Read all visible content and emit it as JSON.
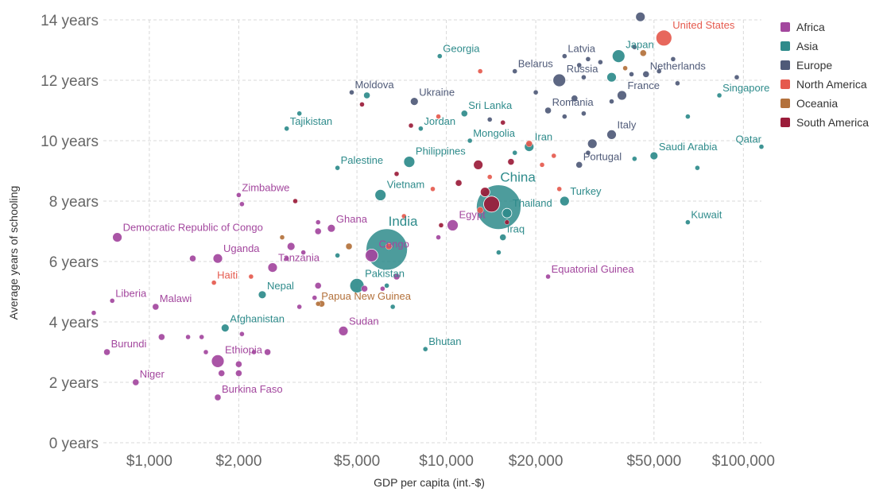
{
  "chart_data": {
    "type": "scatter",
    "xlabel": "GDP per capita (int.-$)",
    "ylabel": "Average years of schooling",
    "x_scale": "log",
    "xlim": [
      700,
      115000
    ],
    "ylim": [
      0,
      14
    ],
    "grid": true,
    "legend_placement": "right",
    "x_ticks": [
      {
        "value": 1000,
        "label": "$1,000"
      },
      {
        "value": 2000,
        "label": "$2,000"
      },
      {
        "value": 5000,
        "label": "$5,000"
      },
      {
        "value": 10000,
        "label": "$10,000"
      },
      {
        "value": 20000,
        "label": "$20,000"
      },
      {
        "value": 50000,
        "label": "$50,000"
      },
      {
        "value": 100000,
        "label": "$100,000"
      }
    ],
    "y_ticks": [
      {
        "value": 0,
        "label": "0 years"
      },
      {
        "value": 2,
        "label": "2 years"
      },
      {
        "value": 4,
        "label": "4 years"
      },
      {
        "value": 6,
        "label": "6 years"
      },
      {
        "value": 8,
        "label": "8 years"
      },
      {
        "value": 10,
        "label": "10 years"
      },
      {
        "value": 12,
        "label": "12 years"
      },
      {
        "value": 14,
        "label": "14 years"
      }
    ],
    "legend": [
      {
        "name": "Africa",
        "color": "#a3479e"
      },
      {
        "name": "Asia",
        "color": "#2e8b8b"
      },
      {
        "name": "Europe",
        "color": "#4f5a78"
      },
      {
        "name": "North America",
        "color": "#e55a4e"
      },
      {
        "name": "Oceania",
        "color": "#b3713b"
      },
      {
        "name": "South America",
        "color": "#9b1c3a"
      }
    ],
    "points": [
      {
        "label": "United States",
        "region": "North America",
        "x": 54000,
        "y": 13.4,
        "size": 10
      },
      {
        "label": "Japan",
        "region": "Asia",
        "x": 38000,
        "y": 12.8,
        "size": 8
      },
      {
        "label": "Latvia",
        "region": "Europe",
        "x": 25000,
        "y": 12.8,
        "size": 3
      },
      {
        "label": "Georgia",
        "region": "Asia",
        "x": 9500,
        "y": 12.8,
        "size": 3
      },
      {
        "label": "Belarus",
        "region": "Europe",
        "x": 17000,
        "y": 12.3,
        "size": 3
      },
      {
        "label": "Russia",
        "region": "Europe",
        "x": 24000,
        "y": 12.0,
        "size": 8
      },
      {
        "label": "Netherlands",
        "region": "Europe",
        "x": 47000,
        "y": 12.2,
        "size": 4
      },
      {
        "label": "Singapore",
        "region": "Asia",
        "x": 83000,
        "y": 11.5,
        "size": 3
      },
      {
        "label": "France",
        "region": "Europe",
        "x": 39000,
        "y": 11.5,
        "size": 6
      },
      {
        "label": "Moldova",
        "region": "Europe",
        "x": 4800,
        "y": 11.6,
        "size": 3
      },
      {
        "label": "Ukraine",
        "region": "Europe",
        "x": 7800,
        "y": 11.3,
        "size": 5
      },
      {
        "label": "Romania",
        "region": "Europe",
        "x": 22000,
        "y": 11.0,
        "size": 4
      },
      {
        "label": "Sri Lanka",
        "region": "Asia",
        "x": 11500,
        "y": 10.9,
        "size": 4
      },
      {
        "label": "Tajikistan",
        "region": "Asia",
        "x": 2900,
        "y": 10.4,
        "size": 3
      },
      {
        "label": "Jordan",
        "region": "Asia",
        "x": 8200,
        "y": 10.4,
        "size": 3
      },
      {
        "label": "Mongolia",
        "region": "Asia",
        "x": 12000,
        "y": 10.0,
        "size": 3
      },
      {
        "label": "Iran",
        "region": "Asia",
        "x": 19000,
        "y": 9.8,
        "size": 6
      },
      {
        "label": "Italy",
        "region": "Europe",
        "x": 36000,
        "y": 10.2,
        "size": 6
      },
      {
        "label": "Qatar",
        "region": "Asia",
        "x": 115000,
        "y": 9.8,
        "size": 3
      },
      {
        "label": "Saudi Arabia",
        "region": "Asia",
        "x": 50000,
        "y": 9.5,
        "size": 5
      },
      {
        "label": "Portugal",
        "region": "Europe",
        "x": 28000,
        "y": 9.2,
        "size": 4
      },
      {
        "label": "Philippines",
        "region": "Asia",
        "x": 7500,
        "y": 9.3,
        "size": 7
      },
      {
        "label": "Palestine",
        "region": "Asia",
        "x": 4300,
        "y": 9.1,
        "size": 3
      },
      {
        "label": "Zimbabwe",
        "region": "Africa",
        "x": 2000,
        "y": 8.2,
        "size": 3
      },
      {
        "label": "Vietnam",
        "region": "Asia",
        "x": 6000,
        "y": 8.2,
        "size": 7
      },
      {
        "label": "China",
        "region": "Asia",
        "x": 15000,
        "y": 7.8,
        "size": 28,
        "big": true
      },
      {
        "label": "Turkey",
        "region": "Asia",
        "x": 25000,
        "y": 8.0,
        "size": 6
      },
      {
        "label": "Thailand",
        "region": "Asia",
        "x": 16000,
        "y": 7.6,
        "size": 6
      },
      {
        "label": "Iraq",
        "region": "Asia",
        "x": 15500,
        "y": 6.8,
        "size": 4
      },
      {
        "label": "Egypt",
        "region": "Africa",
        "x": 10500,
        "y": 7.2,
        "size": 7
      },
      {
        "label": "Kuwait",
        "region": "Asia",
        "x": 65000,
        "y": 7.3,
        "size": 3
      },
      {
        "label": "India",
        "region": "Asia",
        "x": 6300,
        "y": 6.4,
        "size": 26,
        "big": true
      },
      {
        "label": "Democratic Republic of Congo",
        "region": "Africa",
        "x": 780,
        "y": 6.8,
        "size": 6
      },
      {
        "label": "Ghana",
        "region": "Africa",
        "x": 4100,
        "y": 7.1,
        "size": 5
      },
      {
        "label": "Congo",
        "region": "Africa",
        "x": 5600,
        "y": 6.2,
        "size": 8
      },
      {
        "label": "Uganda",
        "region": "Africa",
        "x": 1700,
        "y": 6.1,
        "size": 6
      },
      {
        "label": "Tanzania",
        "region": "Africa",
        "x": 2600,
        "y": 5.8,
        "size": 6
      },
      {
        "label": "Haiti",
        "region": "North America",
        "x": 1650,
        "y": 5.3,
        "size": 3
      },
      {
        "label": "Pakistan",
        "region": "Asia",
        "x": 5000,
        "y": 5.2,
        "size": 9
      },
      {
        "label": "Equatorial Guinea",
        "region": "Africa",
        "x": 22000,
        "y": 5.5,
        "size": 3
      },
      {
        "label": "Liberia",
        "region": "Africa",
        "x": 750,
        "y": 4.7,
        "size": 3
      },
      {
        "label": "Malawi",
        "region": "Africa",
        "x": 1050,
        "y": 4.5,
        "size": 4
      },
      {
        "label": "Nepal",
        "region": "Asia",
        "x": 2400,
        "y": 4.9,
        "size": 5
      },
      {
        "label": "Papua New Guinea",
        "region": "Oceania",
        "x": 3700,
        "y": 4.6,
        "size": 3
      },
      {
        "label": "Afghanistan",
        "region": "Asia",
        "x": 1800,
        "y": 3.8,
        "size": 5
      },
      {
        "label": "Sudan",
        "region": "Africa",
        "x": 4500,
        "y": 3.7,
        "size": 6
      },
      {
        "label": "Bhutan",
        "region": "Asia",
        "x": 8500,
        "y": 3.1,
        "size": 3
      },
      {
        "label": "Burundi",
        "region": "Africa",
        "x": 720,
        "y": 3.0,
        "size": 4
      },
      {
        "label": "Ethiopia",
        "region": "Africa",
        "x": 1700,
        "y": 2.7,
        "size": 8
      },
      {
        "label": "Niger",
        "region": "Africa",
        "x": 900,
        "y": 2.0,
        "size": 4
      },
      {
        "label": "Burkina Faso",
        "region": "Africa",
        "x": 1700,
        "y": 1.5,
        "size": 4
      },
      {
        "region": "Europe",
        "x": 45000,
        "y": 14.1,
        "size": 6
      },
      {
        "region": "Europe",
        "x": 43000,
        "y": 13.1,
        "size": 3
      },
      {
        "region": "Europe",
        "x": 30000,
        "y": 12.7,
        "size": 3
      },
      {
        "region": "Europe",
        "x": 33000,
        "y": 12.6,
        "size": 3
      },
      {
        "region": "Europe",
        "x": 28000,
        "y": 12.5,
        "size": 3
      },
      {
        "region": "Oceania",
        "x": 46000,
        "y": 12.9,
        "size": 4
      },
      {
        "region": "Oceania",
        "x": 40000,
        "y": 12.4,
        "size": 3
      },
      {
        "region": "Europe",
        "x": 42000,
        "y": 12.2,
        "size": 3
      },
      {
        "region": "Asia",
        "x": 36000,
        "y": 12.1,
        "size": 6
      },
      {
        "region": "Europe",
        "x": 29000,
        "y": 12.1,
        "size": 3
      },
      {
        "region": "Europe",
        "x": 52000,
        "y": 12.3,
        "size": 3
      },
      {
        "region": "Europe",
        "x": 60000,
        "y": 11.9,
        "size": 3
      },
      {
        "region": "Europe",
        "x": 95000,
        "y": 12.1,
        "size": 3
      },
      {
        "region": "Europe",
        "x": 58000,
        "y": 12.7,
        "size": 3
      },
      {
        "region": "Europe",
        "x": 20000,
        "y": 11.6,
        "size": 3
      },
      {
        "region": "Europe",
        "x": 27000,
        "y": 11.4,
        "size": 4
      },
      {
        "region": "Europe",
        "x": 36000,
        "y": 11.3,
        "size": 3
      },
      {
        "region": "Europe",
        "x": 25000,
        "y": 10.8,
        "size": 3
      },
      {
        "region": "Europe",
        "x": 29000,
        "y": 10.9,
        "size": 3
      },
      {
        "region": "North America",
        "x": 13000,
        "y": 12.3,
        "size": 3
      },
      {
        "region": "South America",
        "x": 5200,
        "y": 11.2,
        "size": 3
      },
      {
        "region": "Asia",
        "x": 5400,
        "y": 11.5,
        "size": 4
      },
      {
        "region": "Asia",
        "x": 3200,
        "y": 10.9,
        "size": 3
      },
      {
        "region": "North America",
        "x": 9400,
        "y": 10.8,
        "size": 3
      },
      {
        "region": "South America",
        "x": 7600,
        "y": 10.5,
        "size": 3
      },
      {
        "region": "Europe",
        "x": 14000,
        "y": 10.7,
        "size": 3
      },
      {
        "region": "South America",
        "x": 15500,
        "y": 10.6,
        "size": 3
      },
      {
        "region": "Asia",
        "x": 17000,
        "y": 9.6,
        "size": 3
      },
      {
        "region": "South America",
        "x": 16500,
        "y": 9.3,
        "size": 4
      },
      {
        "region": "North America",
        "x": 19000,
        "y": 9.9,
        "size": 4
      },
      {
        "region": "Europe",
        "x": 31000,
        "y": 9.9,
        "size": 6
      },
      {
        "region": "Europe",
        "x": 30000,
        "y": 9.6,
        "size": 3
      },
      {
        "region": "Asia",
        "x": 65000,
        "y": 10.8,
        "size": 3
      },
      {
        "region": "Asia",
        "x": 70000,
        "y": 9.1,
        "size": 3
      },
      {
        "region": "Asia",
        "x": 43000,
        "y": 9.4,
        "size": 3
      },
      {
        "region": "North America",
        "x": 21000,
        "y": 9.2,
        "size": 3
      },
      {
        "region": "North America",
        "x": 23000,
        "y": 9.5,
        "size": 3
      },
      {
        "region": "South America",
        "x": 12800,
        "y": 9.2,
        "size": 6
      },
      {
        "region": "South America",
        "x": 11000,
        "y": 8.6,
        "size": 4
      },
      {
        "region": "North America",
        "x": 14000,
        "y": 8.8,
        "size": 3
      },
      {
        "region": "South America",
        "x": 13500,
        "y": 8.3,
        "size": 6
      },
      {
        "region": "South America",
        "x": 14200,
        "y": 7.9,
        "size": 10
      },
      {
        "region": "North America",
        "x": 13000,
        "y": 7.7,
        "size": 4
      },
      {
        "region": "South America",
        "x": 16000,
        "y": 7.3,
        "size": 3
      },
      {
        "region": "North America",
        "x": 9000,
        "y": 8.4,
        "size": 3
      },
      {
        "region": "South America",
        "x": 6800,
        "y": 8.9,
        "size": 3
      },
      {
        "region": "North America",
        "x": 7200,
        "y": 7.5,
        "size": 3
      },
      {
        "region": "North America",
        "x": 24000,
        "y": 8.4,
        "size": 3
      },
      {
        "region": "South America",
        "x": 9600,
        "y": 7.2,
        "size": 3
      },
      {
        "region": "Africa",
        "x": 9400,
        "y": 6.8,
        "size": 3
      },
      {
        "region": "Asia",
        "x": 15000,
        "y": 6.3,
        "size": 3
      },
      {
        "region": "Asia",
        "x": 6300,
        "y": 5.2,
        "size": 3
      },
      {
        "region": "Africa",
        "x": 6800,
        "y": 5.5,
        "size": 4
      },
      {
        "region": "Africa",
        "x": 6100,
        "y": 5.1,
        "size": 3
      },
      {
        "region": "Africa",
        "x": 5300,
        "y": 5.1,
        "size": 4
      },
      {
        "region": "Asia",
        "x": 6600,
        "y": 4.5,
        "size": 3
      },
      {
        "region": "Africa",
        "x": 3700,
        "y": 7.0,
        "size": 4
      },
      {
        "region": "Oceania",
        "x": 2800,
        "y": 6.8,
        "size": 3
      },
      {
        "region": "Oceania",
        "x": 4700,
        "y": 6.5,
        "size": 4
      },
      {
        "region": "Africa",
        "x": 3000,
        "y": 6.5,
        "size": 5
      },
      {
        "region": "Africa",
        "x": 3300,
        "y": 6.3,
        "size": 3
      },
      {
        "region": "Africa",
        "x": 2900,
        "y": 6.1,
        "size": 3
      },
      {
        "region": "Africa",
        "x": 1400,
        "y": 6.1,
        "size": 4
      },
      {
        "region": "North America",
        "x": 2200,
        "y": 5.5,
        "size": 3
      },
      {
        "region": "Africa",
        "x": 3700,
        "y": 5.2,
        "size": 4
      },
      {
        "region": "Africa",
        "x": 3600,
        "y": 4.8,
        "size": 3
      },
      {
        "region": "Oceania",
        "x": 3800,
        "y": 4.6,
        "size": 4
      },
      {
        "region": "Africa",
        "x": 3200,
        "y": 4.5,
        "size": 3
      },
      {
        "region": "Africa",
        "x": 650,
        "y": 4.3,
        "size": 3
      },
      {
        "region": "Africa",
        "x": 1100,
        "y": 3.5,
        "size": 4
      },
      {
        "region": "Africa",
        "x": 1350,
        "y": 3.5,
        "size": 3
      },
      {
        "region": "Africa",
        "x": 1500,
        "y": 3.5,
        "size": 3
      },
      {
        "region": "Africa",
        "x": 2050,
        "y": 3.6,
        "size": 3
      },
      {
        "region": "Africa",
        "x": 1550,
        "y": 3.0,
        "size": 3
      },
      {
        "region": "Africa",
        "x": 2250,
        "y": 3.0,
        "size": 3
      },
      {
        "region": "Africa",
        "x": 2500,
        "y": 3.0,
        "size": 4
      },
      {
        "region": "Africa",
        "x": 2000,
        "y": 2.6,
        "size": 4
      },
      {
        "region": "Africa",
        "x": 1750,
        "y": 2.3,
        "size": 4
      },
      {
        "region": "Africa",
        "x": 2000,
        "y": 2.3,
        "size": 4
      },
      {
        "region": "South America",
        "x": 3100,
        "y": 8.0,
        "size": 3
      },
      {
        "region": "Africa",
        "x": 2050,
        "y": 7.9,
        "size": 3
      },
      {
        "region": "Africa",
        "x": 3700,
        "y": 7.3,
        "size": 3
      },
      {
        "region": "Asia",
        "x": 4300,
        "y": 6.2,
        "size": 3
      },
      {
        "region": "North America",
        "x": 6400,
        "y": 6.5,
        "size": 4
      }
    ]
  }
}
